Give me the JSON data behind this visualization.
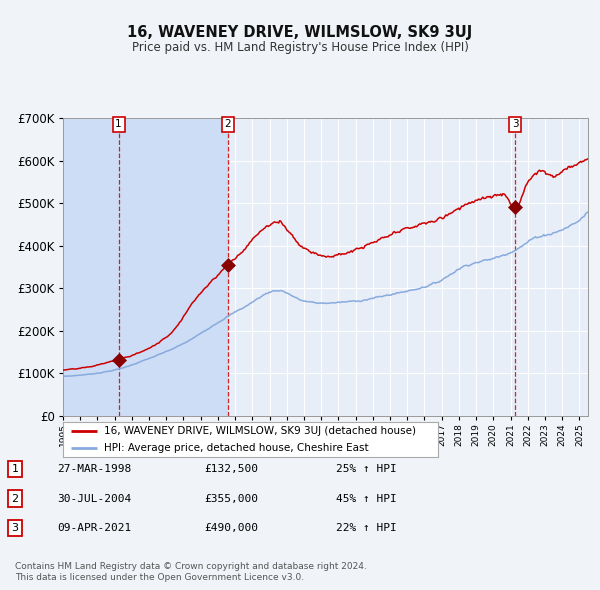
{
  "title": "16, WAVENEY DRIVE, WILMSLOW, SK9 3UJ",
  "subtitle": "Price paid vs. HM Land Registry's House Price Index (HPI)",
  "fig_bg_color": "#f0f4f8",
  "plot_bg_color": "#e8eef8",
  "grid_color": "#ffffff",
  "y_min": 0,
  "y_max": 700000,
  "x_min": 1995.0,
  "x_max": 2025.5,
  "sale_dates_num": [
    1998.23,
    2004.58,
    2021.27
  ],
  "sale_prices": [
    132500,
    355000,
    490000
  ],
  "sale_labels": [
    "1",
    "2",
    "3"
  ],
  "sale_date_strs": [
    "27-MAR-1998",
    "30-JUL-2004",
    "09-APR-2021"
  ],
  "sale_price_strs": [
    "£132,500",
    "£355,000",
    "£490,000"
  ],
  "sale_hpi_strs": [
    "25% ↑ HPI",
    "45% ↑ HPI",
    "22% ↑ HPI"
  ],
  "red_line_color": "#cc0000",
  "blue_line_color": "#88aadd",
  "dot_color": "#880000",
  "vline_color": "#cc0000",
  "shade_color": "#ccddf5",
  "legend_label_red": "16, WAVENEY DRIVE, WILMSLOW, SK9 3UJ (detached house)",
  "legend_label_blue": "HPI: Average price, detached house, Cheshire East",
  "footer_text": "Contains HM Land Registry data © Crown copyright and database right 2024.\nThis data is licensed under the Open Government Licence v3.0.",
  "ytick_labels": [
    "£0",
    "£100K",
    "£200K",
    "£300K",
    "£400K",
    "£500K",
    "£600K",
    "£700K"
  ],
  "ytick_vals": [
    0,
    100000,
    200000,
    300000,
    400000,
    500000,
    600000,
    700000
  ]
}
